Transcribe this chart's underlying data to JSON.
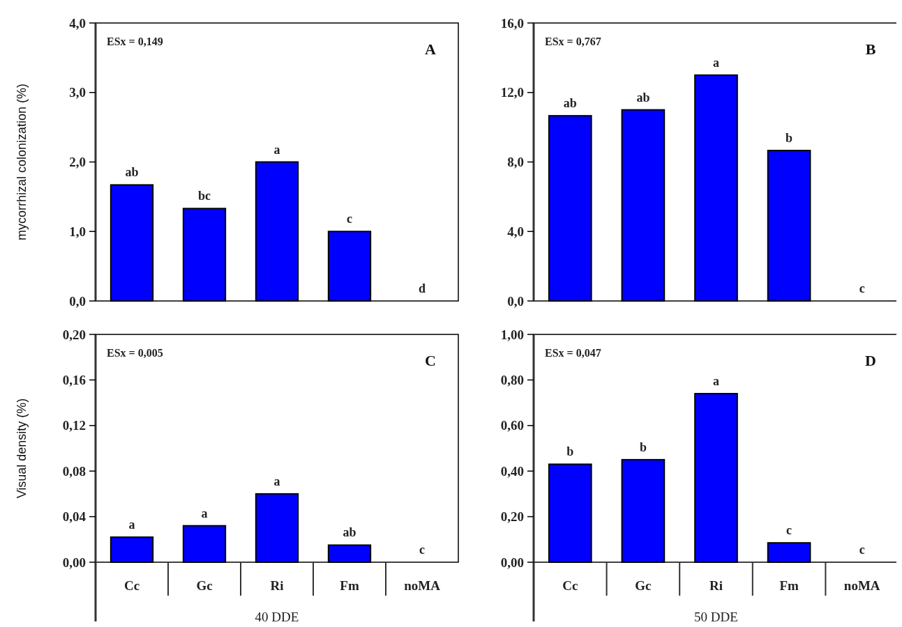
{
  "chart_data": [
    {
      "type": "bar",
      "title": "A",
      "ylabel": "mycorrhizal colonization (%)",
      "categories": [
        "Cc",
        "Gc",
        "Ri",
        "Fm",
        "noMA"
      ],
      "tick_labels": "y",
      "series": [
        {
          "color": "#0000ff",
          "values": [
            1.67,
            1.33,
            2.0,
            1.0,
            0
          ]
        }
      ],
      "ylim": [
        0,
        4
      ],
      "yticks": [
        {
          "value": 0,
          "label": "0,0"
        },
        {
          "value": 1,
          "label": "1,0"
        },
        {
          "value": 2,
          "label": "2,0"
        },
        {
          "value": 3,
          "label": "3,0"
        },
        {
          "value": 4,
          "label": "4,0"
        }
      ],
      "annotations": [
        "ESx = 0,149",
        {
          "text": "ab",
          "x": "Cc",
          "y": 1.67
        },
        {
          "text": "bc",
          "x": "Gc",
          "y": 1.33
        },
        {
          "text": "a",
          "x": "Ri",
          "y": 2.0
        },
        {
          "text": "c",
          "x": "Fm",
          "y": 1.0
        },
        {
          "text": "d",
          "x": "noMA",
          "y": 0
        }
      ]
    },
    {
      "type": "bar",
      "title": "B",
      "categories": [
        "Cc",
        "Gc",
        "Ri",
        "Fm",
        "noMA"
      ],
      "tick_labels": "y",
      "series": [
        {
          "color": "#0000ff",
          "values": [
            10.66,
            11.0,
            13.0,
            8.66,
            0
          ]
        }
      ],
      "ylim": [
        0,
        16
      ],
      "yticks": [
        {
          "value": 0,
          "label": "0,0"
        },
        {
          "value": 4,
          "label": "4,0"
        },
        {
          "value": 8,
          "label": "8,0"
        },
        {
          "value": 12,
          "label": "12,0"
        },
        {
          "value": 16,
          "label": "16,0"
        }
      ],
      "annotations": [
        "ESx = 0,767",
        {
          "text": "ab",
          "x": "Cc",
          "y": 10.66
        },
        {
          "text": "ab",
          "x": "Gc",
          "y": 11.0
        },
        {
          "text": "a",
          "x": "Ri",
          "y": 13.0
        },
        {
          "text": "b",
          "x": "Fm",
          "y": 8.66
        },
        {
          "text": "c",
          "x": "noMA",
          "y": 0
        }
      ]
    },
    {
      "type": "bar",
      "title": "C",
      "ylabel": "Visual density (%)",
      "xlabel": "40 DDE",
      "categories": [
        "Cc",
        "Gc",
        "Ri",
        "Fm",
        "noMA"
      ],
      "series": [
        {
          "color": "#0000ff",
          "values": [
            0.022,
            0.032,
            0.06,
            0.015,
            0
          ]
        }
      ],
      "ylim": [
        0,
        0.2
      ],
      "yticks": [
        {
          "value": 0,
          "label": "0,00"
        },
        {
          "value": 0.04,
          "label": "0,04"
        },
        {
          "value": 0.08,
          "label": "0,08"
        },
        {
          "value": 0.12,
          "label": "0,12"
        },
        {
          "value": 0.16,
          "label": "0,16"
        },
        {
          "value": 0.2,
          "label": "0,20"
        }
      ],
      "annotations": [
        "ESx = 0,005",
        {
          "text": "a",
          "x": "Cc",
          "y": 0.022
        },
        {
          "text": "a",
          "x": "Gc",
          "y": 0.032
        },
        {
          "text": "a",
          "x": "Ri",
          "y": 0.06
        },
        {
          "text": "ab",
          "x": "Fm",
          "y": 0.015
        },
        {
          "text": "c",
          "x": "noMA",
          "y": 0
        }
      ]
    },
    {
      "type": "bar",
      "title": "D",
      "xlabel": "50 DDE",
      "categories": [
        "Cc",
        "Gc",
        "Ri",
        "Fm",
        "noMA"
      ],
      "series": [
        {
          "color": "#0000ff",
          "values": [
            0.43,
            0.45,
            0.74,
            0.085,
            0
          ]
        }
      ],
      "ylim": [
        0,
        1
      ],
      "yticks": [
        {
          "value": 0,
          "label": "0,00"
        },
        {
          "value": 0.2,
          "label": "0,20"
        },
        {
          "value": 0.4,
          "label": "0,40"
        },
        {
          "value": 0.6,
          "label": "0,60"
        },
        {
          "value": 0.8,
          "label": "0,80"
        },
        {
          "value": 1,
          "label": "1,00"
        }
      ],
      "annotations": [
        "ESx = 0,047",
        {
          "text": "b",
          "x": "Cc",
          "y": 0.43
        },
        {
          "text": "b",
          "x": "Gc",
          "y": 0.45
        },
        {
          "text": "a",
          "x": "Ri",
          "y": 0.74
        },
        {
          "text": "c",
          "x": "Fm",
          "y": 0.085
        },
        {
          "text": "c",
          "x": "noMA",
          "y": 0
        }
      ]
    }
  ]
}
